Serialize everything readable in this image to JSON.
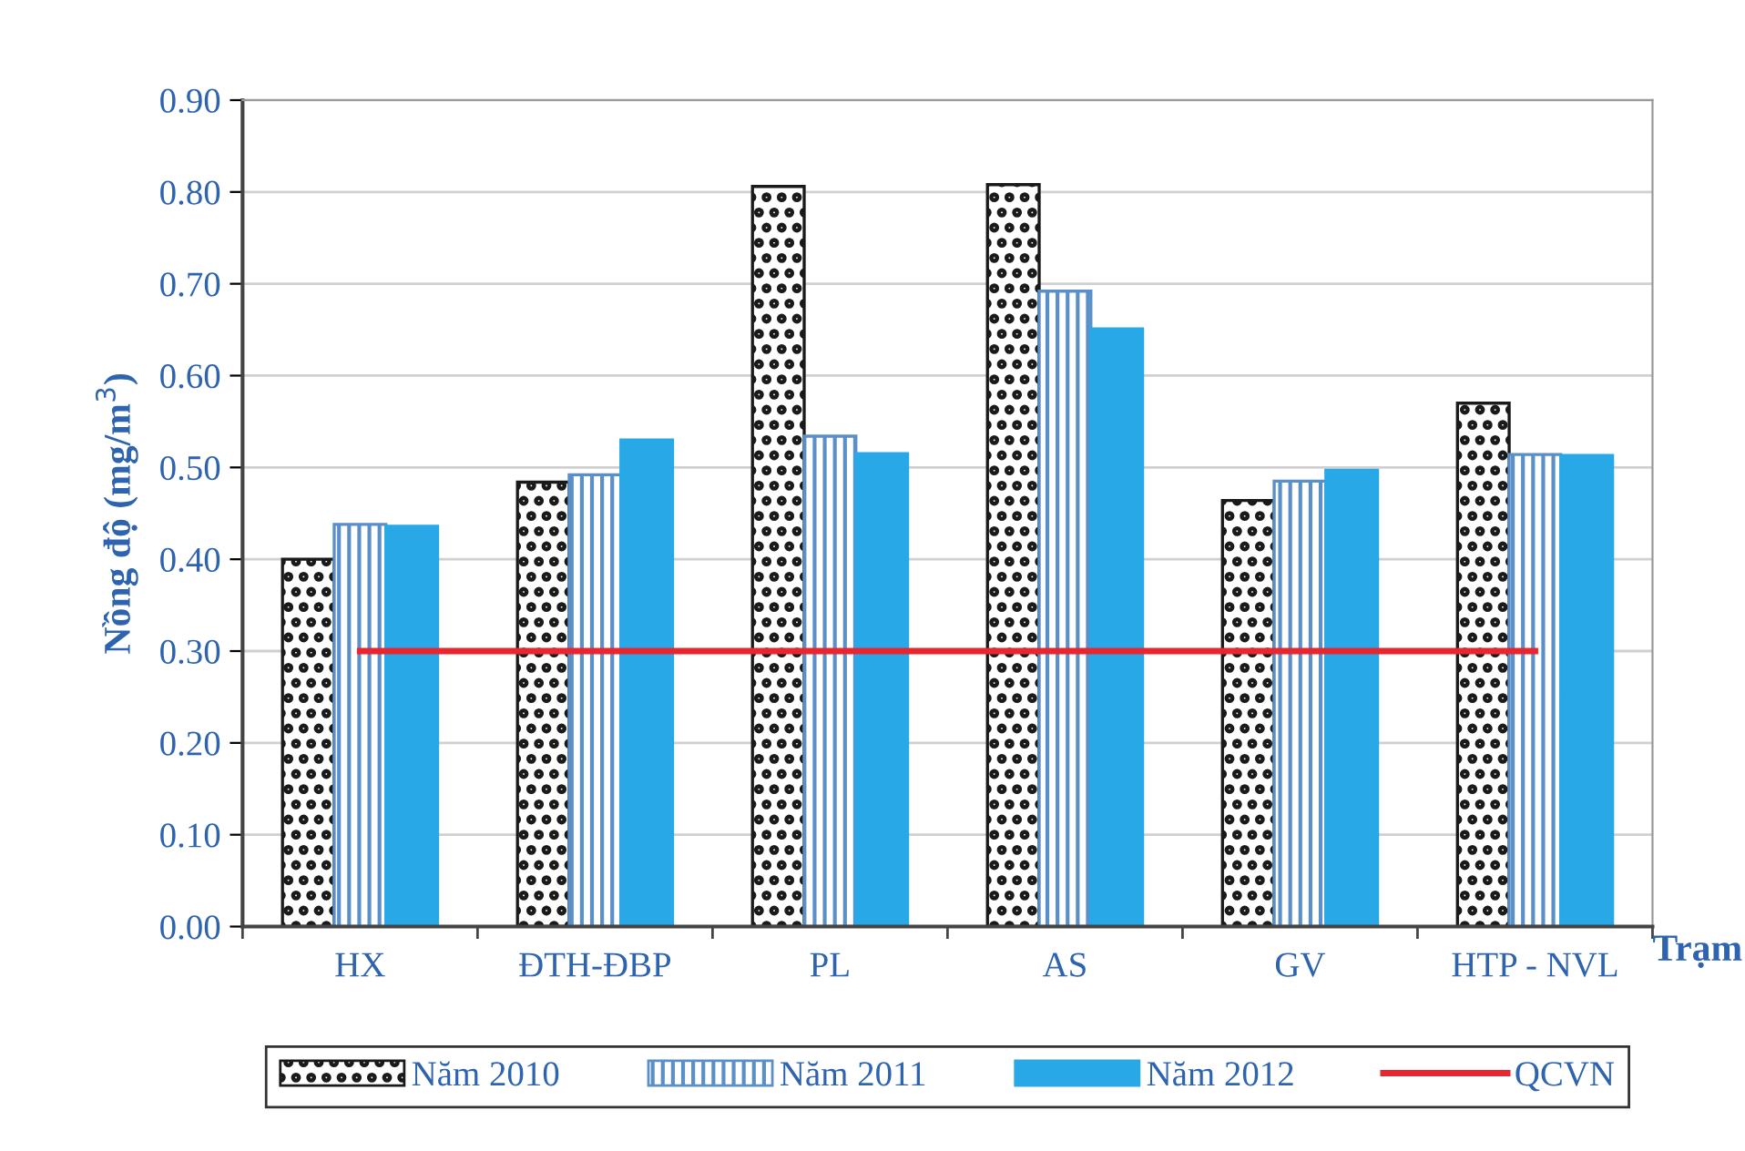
{
  "chart_data": {
    "type": "bar",
    "categories": [
      "HX",
      "ĐTH-ĐBP",
      "PL",
      "AS",
      "GV",
      "HTP - NVL"
    ],
    "series": [
      {
        "name": "Năm 2010",
        "color": "#1a1a1a",
        "values": [
          0.4,
          0.484,
          0.806,
          0.808,
          0.464,
          0.57
        ]
      },
      {
        "name": "Năm 2011",
        "color": "#5b8fc8",
        "values": [
          0.438,
          0.492,
          0.534,
          0.692,
          0.485,
          0.514
        ]
      },
      {
        "name": "Năm 2012",
        "color": "#29a8e8",
        "values": [
          0.436,
          0.53,
          0.515,
          0.651,
          0.497,
          0.513
        ]
      },
      {
        "name": "QCVN",
        "type": "line",
        "color": "#e8262f",
        "values": [
          0.3,
          0.3,
          0.3,
          0.3,
          0.3,
          0.3
        ]
      }
    ],
    "xlabel": "Trạm",
    "ylabel": "Nồng độ (mg/m$^{3}$)",
    "ylim": [
      0,
      0.9
    ],
    "yticks": [
      {
        "value": 0,
        "label": "0.00"
      },
      {
        "value": 0.1,
        "label": "0.10"
      },
      {
        "value": 0.2,
        "label": "0.20"
      },
      {
        "value": 0.3,
        "label": "0.30"
      },
      {
        "value": 0.4,
        "label": "0.40"
      },
      {
        "value": 0.5,
        "label": "0.50"
      },
      {
        "value": 0.6,
        "label": "0.60"
      },
      {
        "value": 0.7,
        "label": "0.70"
      },
      {
        "value": 0.8,
        "label": "0.80"
      },
      {
        "value": 0.9,
        "label": "0.90"
      }
    ],
    "grid": "y",
    "legend": "bottom"
  }
}
